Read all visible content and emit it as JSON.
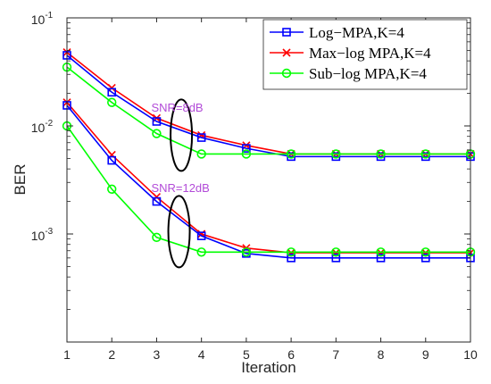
{
  "chart_data": {
    "type": "line",
    "title": "",
    "xlabel": "Iteration",
    "ylabel": "BER",
    "x": [
      1,
      2,
      3,
      4,
      5,
      6,
      7,
      8,
      9,
      10
    ],
    "x_ticks": [
      "1",
      "2",
      "3",
      "4",
      "5",
      "6",
      "7",
      "8",
      "9",
      "10"
    ],
    "xlim": [
      1,
      10
    ],
    "ylim": [
      0.0001,
      0.1
    ],
    "yscale": "log",
    "y_ticks": [
      {
        "value": 0.1,
        "base": "10",
        "exp": "-1"
      },
      {
        "value": 0.01,
        "base": "10",
        "exp": "-2"
      },
      {
        "value": 0.001,
        "base": "10",
        "exp": "-3"
      }
    ],
    "grid": false,
    "legend_position": "top-right",
    "legend": [
      {
        "label": "Log−MPA,K=4",
        "color": "#0000ff",
        "marker": "square"
      },
      {
        "label": "Max−log MPA,K=4",
        "color": "#ff0000",
        "marker": "x"
      },
      {
        "label": "Sub−log MPA,K=4",
        "color": "#00ff00",
        "marker": "circle"
      }
    ],
    "series": [
      {
        "color": "#ff0000",
        "marker": "x",
        "values": [
          0.048,
          0.0225,
          0.0118,
          0.0082,
          0.0066,
          0.0055,
          0.0055,
          0.0055,
          0.0055,
          0.0055
        ]
      },
      {
        "color": "#0000ff",
        "marker": "square",
        "values": [
          0.045,
          0.0205,
          0.011,
          0.0078,
          0.0062,
          0.0052,
          0.0052,
          0.0052,
          0.0052,
          0.0052
        ]
      },
      {
        "color": "#00ff00",
        "marker": "circle",
        "values": [
          0.035,
          0.0165,
          0.0085,
          0.0055,
          0.0055,
          0.0055,
          0.0055,
          0.0055,
          0.0055,
          0.0055
        ]
      },
      {
        "color": "#ff0000",
        "marker": "x",
        "values": [
          0.0165,
          0.0054,
          0.0022,
          0.001,
          0.00074,
          0.00067,
          0.00067,
          0.00067,
          0.00067,
          0.00067
        ]
      },
      {
        "color": "#0000ff",
        "marker": "square",
        "values": [
          0.0155,
          0.0048,
          0.002,
          0.00096,
          0.00066,
          0.0006,
          0.0006,
          0.0006,
          0.0006,
          0.0006
        ]
      },
      {
        "color": "#00ff00",
        "marker": "circle",
        "values": [
          0.01,
          0.0026,
          0.00093,
          0.00068,
          0.00068,
          0.00068,
          0.00068,
          0.00068,
          0.00068,
          0.00068
        ]
      }
    ],
    "annotations": [
      {
        "text": "SNR=8dB",
        "color": "#b24bd8",
        "text_x": 3,
        "text_y": 0.0135,
        "ellipse_x": 3.55,
        "ellipse_y": 0.0082
      },
      {
        "text": "SNR=12dB",
        "color": "#b24bd8",
        "text_x": 3,
        "text_y": 0.00245,
        "ellipse_x": 3.5,
        "ellipse_y": 0.00105
      }
    ]
  }
}
